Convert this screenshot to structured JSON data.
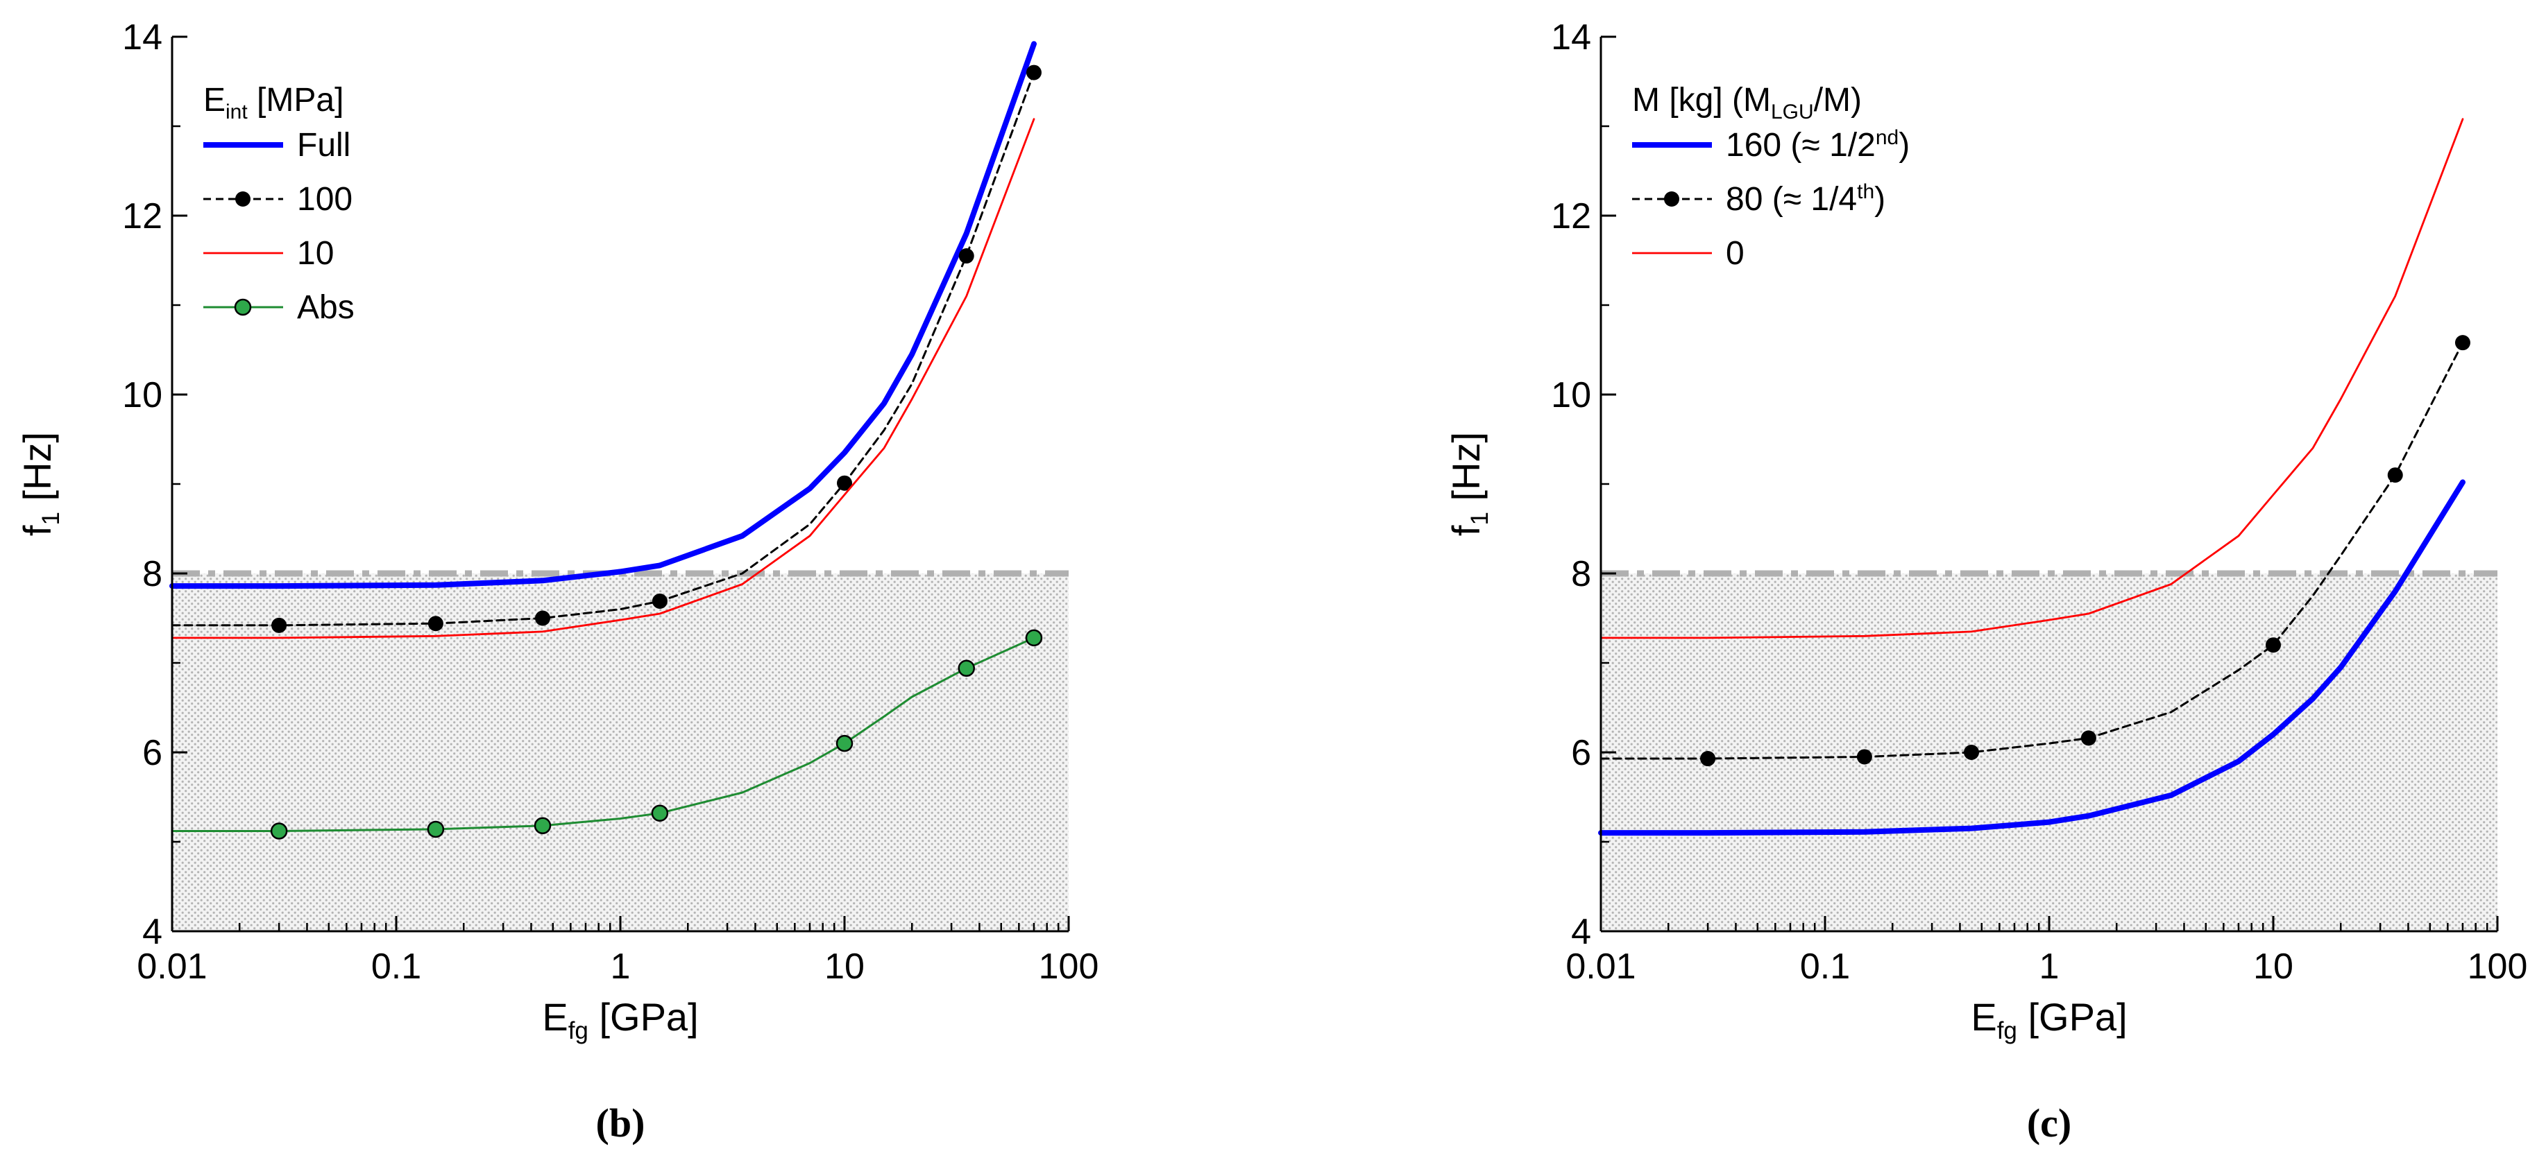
{
  "chart_data": [
    {
      "type": "line",
      "panel_label": "(b)",
      "xlabel": {
        "base": "E",
        "sub": "fg",
        "rest": " [GPa]"
      },
      "ylabel": {
        "base": "f",
        "sub": "1",
        "rest": " [Hz]"
      },
      "xscale": "log",
      "xlim": [
        0.01,
        100
      ],
      "ylim": [
        4,
        14
      ],
      "xticks": [
        "0.01",
        "0.1",
        "1",
        "10",
        "100"
      ],
      "yticks": [
        "4",
        "6",
        "8",
        "10",
        "12",
        "14"
      ],
      "threshold": 8,
      "shaded_region": [
        4,
        8
      ],
      "legend_title": {
        "base": "E",
        "sub": "int",
        "rest": "  [MPa]"
      },
      "legend_position": "top-left",
      "series": [
        {
          "name": "Full",
          "label": "Full",
          "style": "blue-thick",
          "color": "#0000ff",
          "x": [
            0.01,
            0.03,
            0.15,
            0.45,
            1,
            1.5,
            3.5,
            7,
            10,
            15,
            20,
            35,
            70
          ],
          "y": [
            7.86,
            7.86,
            7.87,
            7.92,
            8.02,
            8.09,
            8.42,
            8.95,
            9.35,
            9.9,
            10.45,
            11.8,
            13.92
          ]
        },
        {
          "name": "100",
          "label": "100",
          "style": "black-dashed-dots",
          "color": "#000000",
          "x": [
            0.01,
            0.03,
            0.15,
            0.45,
            1,
            1.5,
            3.5,
            7,
            10,
            15,
            20,
            35,
            70
          ],
          "y": [
            7.42,
            7.42,
            7.44,
            7.5,
            7.6,
            7.69,
            8.0,
            8.55,
            9.01,
            9.6,
            10.12,
            11.55,
            13.6
          ],
          "markers_x": [
            0.03,
            0.15,
            0.45,
            1.5,
            10,
            35,
            70
          ]
        },
        {
          "name": "10",
          "label": "10",
          "style": "red-thin",
          "color": "#ff0000",
          "x": [
            0.01,
            0.03,
            0.15,
            0.45,
            1,
            1.5,
            3.5,
            7,
            10,
            15,
            20,
            35,
            70
          ],
          "y": [
            7.28,
            7.28,
            7.3,
            7.35,
            7.48,
            7.55,
            7.88,
            8.42,
            8.88,
            9.4,
            9.95,
            11.1,
            13.08
          ]
        },
        {
          "name": "Abs",
          "label": "Abs",
          "style": "green-circles",
          "color": "#1e8c32",
          "x": [
            0.01,
            0.03,
            0.15,
            0.45,
            1,
            1.5,
            3.5,
            7,
            10,
            15,
            20,
            35,
            70
          ],
          "y": [
            5.12,
            5.12,
            5.14,
            5.18,
            5.26,
            5.32,
            5.55,
            5.88,
            6.1,
            6.4,
            6.62,
            6.94,
            7.28
          ],
          "markers_x": [
            0.03,
            0.15,
            0.45,
            1.5,
            10,
            35,
            70
          ]
        }
      ]
    },
    {
      "type": "line",
      "panel_label": "(c)",
      "xlabel": {
        "base": "E",
        "sub": "fg",
        "rest": " [GPa]"
      },
      "ylabel": {
        "base": "f",
        "sub": "1",
        "rest": " [Hz]"
      },
      "xscale": "log",
      "xlim": [
        0.01,
        100
      ],
      "ylim": [
        4,
        14
      ],
      "xticks": [
        "0.01",
        "0.1",
        "1",
        "10",
        "100"
      ],
      "yticks": [
        "4",
        "6",
        "8",
        "10",
        "12",
        "14"
      ],
      "threshold": 8,
      "shaded_region": [
        4,
        8
      ],
      "legend_title": {
        "base": "M  [kg]  (M",
        "sub": "LGU",
        "rest": "/M)"
      },
      "legend_position": "top-left",
      "series": [
        {
          "name": "160",
          "label": {
            "base": "160 (≈ 1/2",
            "sup": "nd",
            "rest": ")"
          },
          "style": "blue-thick",
          "color": "#0000ff",
          "x": [
            0.01,
            0.03,
            0.15,
            0.45,
            1,
            1.5,
            3.5,
            7,
            10,
            15,
            20,
            35,
            70
          ],
          "y": [
            5.1,
            5.1,
            5.11,
            5.15,
            5.22,
            5.29,
            5.52,
            5.9,
            6.2,
            6.6,
            6.95,
            7.8,
            9.02
          ]
        },
        {
          "name": "80",
          "label": {
            "base": "80 (≈ 1/4",
            "sup": "th",
            "rest": ")"
          },
          "style": "black-dashed-dots",
          "color": "#000000",
          "x": [
            0.01,
            0.03,
            0.15,
            0.45,
            1,
            1.5,
            3.5,
            7,
            10,
            15,
            20,
            35,
            70
          ],
          "y": [
            5.93,
            5.93,
            5.95,
            6.0,
            6.1,
            6.16,
            6.45,
            6.92,
            7.2,
            7.75,
            8.2,
            9.1,
            10.58
          ],
          "markers_x": [
            0.03,
            0.15,
            0.45,
            1.5,
            10,
            35,
            70
          ]
        },
        {
          "name": "0",
          "label": "0",
          "style": "red-thin",
          "color": "#ff0000",
          "x": [
            0.01,
            0.03,
            0.15,
            0.45,
            1,
            1.5,
            3.5,
            7,
            10,
            15,
            20,
            35,
            70
          ],
          "y": [
            7.28,
            7.28,
            7.3,
            7.35,
            7.48,
            7.55,
            7.88,
            8.42,
            8.88,
            9.4,
            9.95,
            11.1,
            13.08
          ]
        }
      ]
    }
  ]
}
